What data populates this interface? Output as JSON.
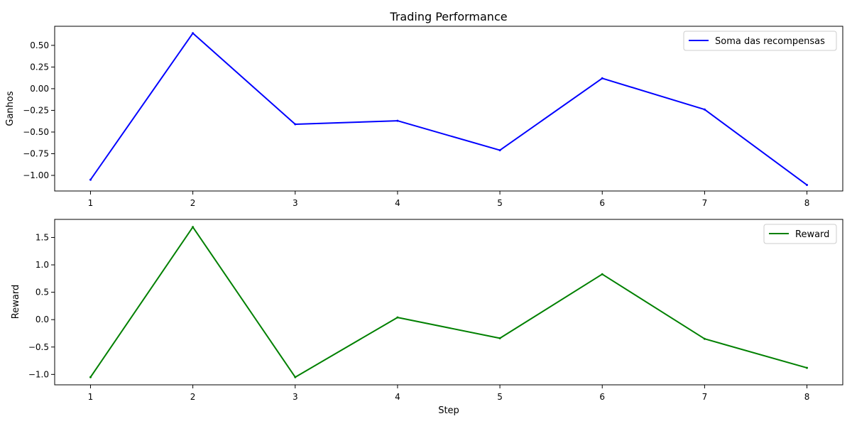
{
  "chart_data": [
    {
      "type": "line",
      "title": "Trading Performance",
      "xlabel": "",
      "ylabel": "Ganhos",
      "x": [
        1,
        2,
        3,
        4,
        5,
        6,
        7,
        8
      ],
      "xlim": [
        0.65,
        8.35
      ],
      "ylim": [
        -1.18,
        0.72
      ],
      "yticks": [
        -1.0,
        -0.75,
        -0.5,
        -0.25,
        0.0,
        0.25,
        0.5
      ],
      "ytick_labels": [
        "−1.00",
        "−0.75",
        "−0.50",
        "−0.25",
        "0.00",
        "0.25",
        "0.50"
      ],
      "grid": false,
      "legend": "top-right",
      "series": [
        {
          "name": "Soma das recompensas",
          "color": "#0000ff",
          "values": [
            -1.05,
            0.64,
            -0.41,
            -0.37,
            -0.71,
            0.12,
            -0.24,
            -1.11
          ]
        }
      ]
    },
    {
      "type": "line",
      "title": "",
      "xlabel": "Step",
      "ylabel": "Reward",
      "x": [
        1,
        2,
        3,
        4,
        5,
        6,
        7,
        8
      ],
      "xlim": [
        0.65,
        8.35
      ],
      "ylim": [
        -1.19,
        1.83
      ],
      "yticks": [
        -1.0,
        -0.5,
        0.0,
        0.5,
        1.0,
        1.5
      ],
      "ytick_labels": [
        "−1.0",
        "−0.5",
        "0.0",
        "0.5",
        "1.0",
        "1.5"
      ],
      "grid": false,
      "legend": "top-right",
      "series": [
        {
          "name": "Reward",
          "color": "#008000",
          "values": [
            -1.05,
            1.69,
            -1.05,
            0.04,
            -0.34,
            0.83,
            -0.35,
            -0.88
          ]
        }
      ]
    }
  ]
}
